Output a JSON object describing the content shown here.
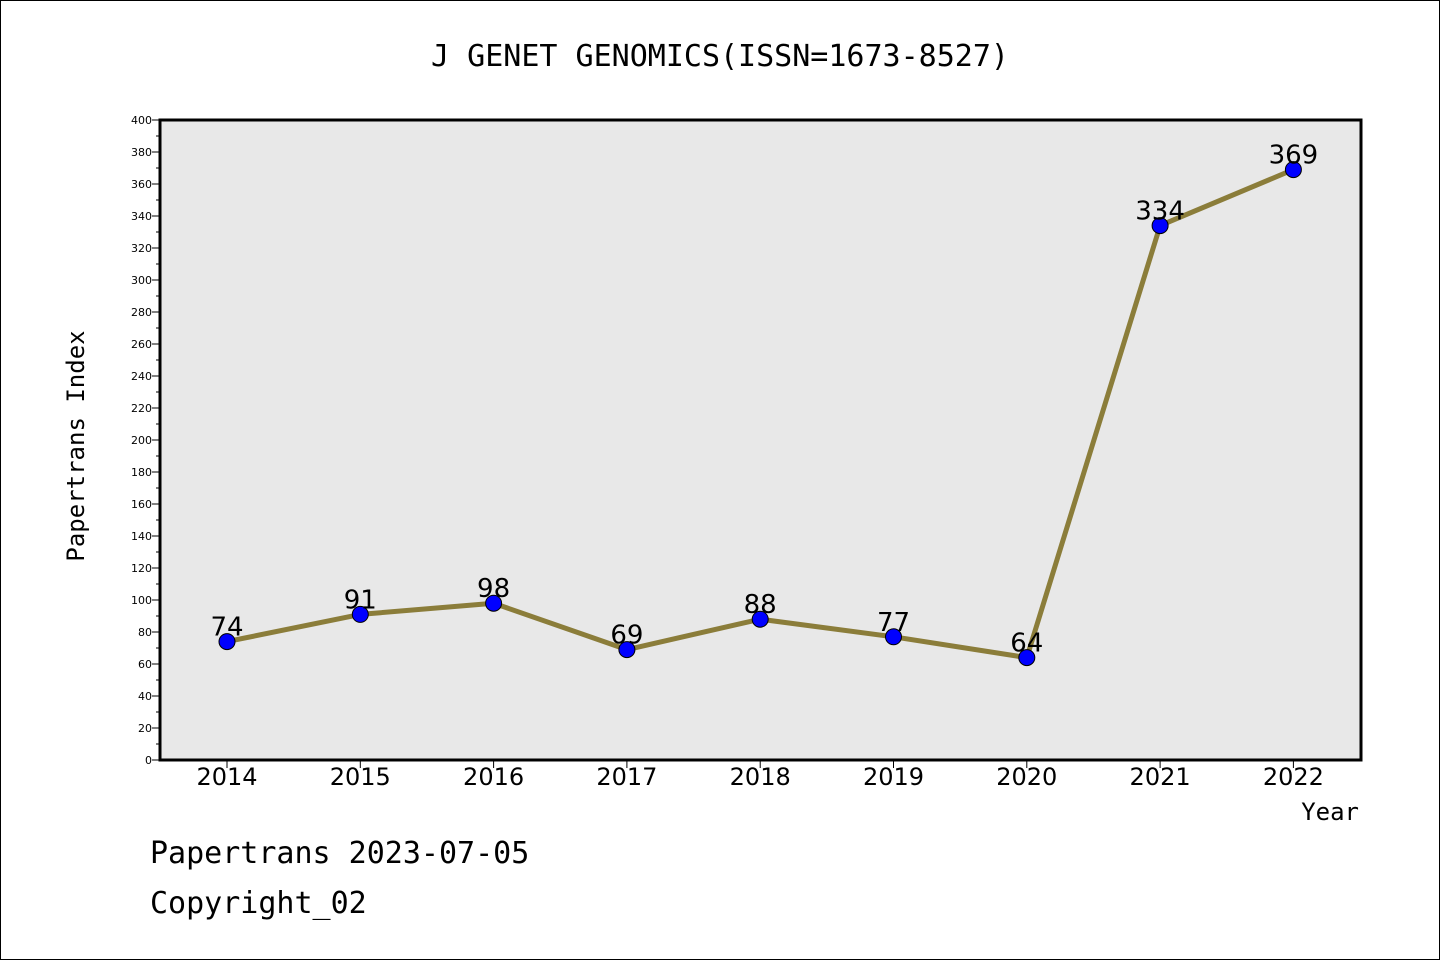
{
  "chart_data": {
    "type": "line",
    "title": "J GENET GENOMICS(ISSN=1673-8527)",
    "xlabel": "Year",
    "ylabel": "Papertrans Index",
    "categories": [
      "2014",
      "2015",
      "2016",
      "2017",
      "2018",
      "2019",
      "2020",
      "2021",
      "2022"
    ],
    "series": [
      {
        "values": [
          74,
          91,
          98,
          69,
          88,
          77,
          64,
          334,
          369
        ]
      }
    ],
    "ylim": [
      0,
      400
    ],
    "yticks": [
      0,
      20,
      40,
      60,
      80,
      100,
      120,
      140,
      160,
      180,
      200,
      220,
      240,
      260,
      280,
      300,
      320,
      340,
      360,
      380,
      400
    ],
    "data_labels": true,
    "grid": false,
    "colors": {
      "line": "#8B7D3A",
      "marker": "#0000FF",
      "plot_background": "#E8E8E8"
    }
  },
  "footer": {
    "date_line": "Papertrans 2023-07-05",
    "copyright_line": "Copyright_02"
  }
}
